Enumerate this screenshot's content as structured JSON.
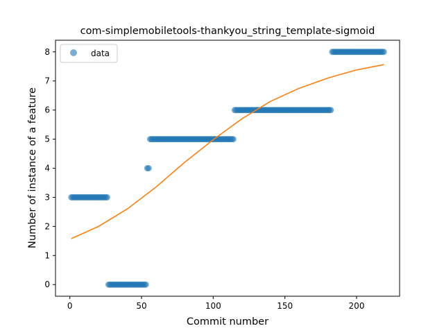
{
  "chart_data": {
    "type": "scatter",
    "title": "com-simplemobiletools-thankyou_string_template-sigmoid",
    "xlabel": "Commit number",
    "ylabel": "Number of instance of a feature",
    "xlim": [
      -10,
      230
    ],
    "ylim": [
      -0.4,
      8.4
    ],
    "xticks": [
      0,
      50,
      100,
      150,
      200
    ],
    "yticks": [
      0,
      1,
      2,
      3,
      4,
      5,
      6,
      7,
      8
    ],
    "legend": {
      "position": "top-left",
      "entries": [
        "data"
      ]
    },
    "colors": {
      "data": "#1f77b4",
      "fit": "#ff7f0e"
    },
    "series": [
      {
        "name": "data",
        "kind": "scatter",
        "segments": [
          {
            "x_start": 1,
            "x_end": 26,
            "y": 3
          },
          {
            "x_start": 27,
            "x_end": 53,
            "y": 0
          },
          {
            "x_start": 54,
            "x_end": 55,
            "y": 4
          },
          {
            "x_start": 56,
            "x_end": 114,
            "y": 5
          },
          {
            "x_start": 115,
            "x_end": 182,
            "y": 6
          },
          {
            "x_start": 183,
            "x_end": 219,
            "y": 8
          }
        ]
      },
      {
        "kind": "line",
        "x": [
          1,
          20,
          40,
          60,
          80,
          100,
          120,
          140,
          160,
          180,
          200,
          219
        ],
        "y": [
          1.58,
          2.0,
          2.6,
          3.35,
          4.2,
          4.98,
          5.7,
          6.3,
          6.75,
          7.1,
          7.38,
          7.56
        ]
      }
    ]
  }
}
